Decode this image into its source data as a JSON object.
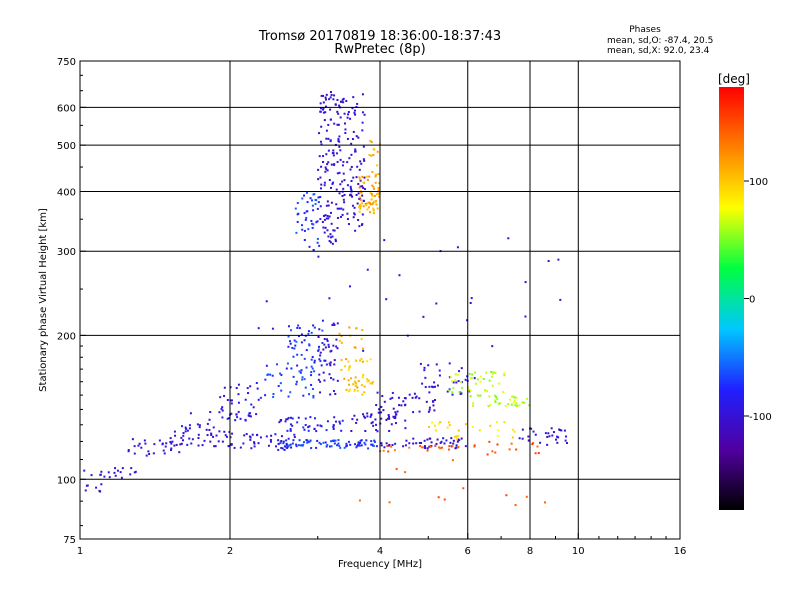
{
  "header": {
    "title": "Tromsø 20170819 18:36:00-18:37:43",
    "subtitle": "RwPretec (8p)",
    "info_title": "Phases",
    "info_o": "mean, sd,O: -87.4, 20.5",
    "info_x": "mean, sd,X:  92.0, 23.4"
  },
  "chart_data": {
    "type": "scatter",
    "xlabel": "Frequency [MHz]",
    "ylabel": "Stationary phase Virtual Height [km]",
    "xscale": "log",
    "yscale": "log",
    "xlim": [
      1,
      16
    ],
    "ylim": [
      75,
      750
    ],
    "xticks": [
      1,
      2,
      4,
      6,
      8,
      10,
      16
    ],
    "xtick_labels": [
      "1",
      "2",
      "4",
      "6",
      "8",
      "10",
      "16"
    ],
    "xgrid": [
      2,
      4,
      6,
      8,
      10
    ],
    "yticks": [
      75,
      100,
      200,
      300,
      400,
      500,
      600,
      750
    ],
    "ytick_labels": [
      "75",
      "100",
      "200",
      "300",
      "400",
      "500",
      "600",
      "750"
    ],
    "ygrid": [
      100,
      200,
      300,
      400,
      500,
      600
    ],
    "grid": true,
    "colorbar": {
      "label": "[deg]",
      "range": [
        -180,
        180
      ],
      "ticks": [
        100,
        0,
        -100
      ],
      "tick_labels": [
        "100",
        "0",
        "-100"
      ],
      "colors": [
        "#000000",
        "#5000a0",
        "#2020ff",
        "#00c8ff",
        "#00ff40",
        "#ffff00",
        "#ff8000",
        "#ff0000"
      ]
    },
    "clusters": [
      {
        "x": [
          1.0,
          1.12
        ],
        "y": [
          92,
          106
        ],
        "phase": -100,
        "n": 12
      },
      {
        "x": [
          1.1,
          1.3
        ],
        "y": [
          100,
          108
        ],
        "phase": -95,
        "n": 14
      },
      {
        "x": [
          1.25,
          1.6
        ],
        "y": [
          112,
          122
        ],
        "phase": -100,
        "n": 30
      },
      {
        "x": [
          1.5,
          2.0
        ],
        "y": [
          117,
          128
        ],
        "phase": -100,
        "n": 40
      },
      {
        "x": [
          1.6,
          2.2
        ],
        "y": [
          128,
          140
        ],
        "phase": -90,
        "n": 25
      },
      {
        "x": [
          1.9,
          2.3
        ],
        "y": [
          135,
          160
        ],
        "phase": -95,
        "n": 30
      },
      {
        "x": [
          2.0,
          2.7
        ],
        "y": [
          115,
          125
        ],
        "phase": -95,
        "n": 45
      },
      {
        "x": [
          2.3,
          3.0
        ],
        "y": [
          148,
          175
        ],
        "phase": -70,
        "n": 40
      },
      {
        "x": [
          2.6,
          3.1
        ],
        "y": [
          170,
          215
        ],
        "phase": -70,
        "n": 45
      },
      {
        "x": [
          3.0,
          3.3
        ],
        "y": [
          150,
          215
        ],
        "phase": -100,
        "n": 45
      },
      {
        "x": [
          2.5,
          4.0
        ],
        "y": [
          116,
          121
        ],
        "phase": -70,
        "n": 80
      },
      {
        "x": [
          2.5,
          3.4
        ],
        "y": [
          126,
          135
        ],
        "phase": -85,
        "n": 45
      },
      {
        "x": [
          3.5,
          4.5
        ],
        "y": [
          126,
          138
        ],
        "phase": -100,
        "n": 40
      },
      {
        "x": [
          3.4,
          3.9
        ],
        "y": [
          150,
          180
        ],
        "phase": 100,
        "n": 35
      },
      {
        "x": [
          3.3,
          3.7
        ],
        "y": [
          155,
          210
        ],
        "phase": 110,
        "n": 25
      },
      {
        "x": [
          3.9,
          5.2
        ],
        "y": [
          138,
          152
        ],
        "phase": -100,
        "n": 40
      },
      {
        "x": [
          4.0,
          6.0
        ],
        "y": [
          116,
          122
        ],
        "phase": -100,
        "n": 50
      },
      {
        "x": [
          4.0,
          6.0
        ],
        "y": [
          114,
          118
        ],
        "phase": 140,
        "n": 20
      },
      {
        "x": [
          4.8,
          6.2
        ],
        "y": [
          150,
          175
        ],
        "phase": -95,
        "n": 35
      },
      {
        "x": [
          5.5,
          7.2
        ],
        "y": [
          152,
          168
        ],
        "phase": 60,
        "n": 40
      },
      {
        "x": [
          6.0,
          8.0
        ],
        "y": [
          142,
          150
        ],
        "phase": 60,
        "n": 35
      },
      {
        "x": [
          5.0,
          7.5
        ],
        "y": [
          120,
          132
        ],
        "phase": 90,
        "n": 25
      },
      {
        "x": [
          7.5,
          9.5
        ],
        "y": [
          118,
          128
        ],
        "phase": -100,
        "n": 30
      },
      {
        "x": [
          6.0,
          8.5
        ],
        "y": [
          112,
          120
        ],
        "phase": 150,
        "n": 15
      },
      {
        "x": [
          2.7,
          3.05
        ],
        "y": [
          300,
          400
        ],
        "phase": -70,
        "n": 45
      },
      {
        "x": [
          3.0,
          3.3
        ],
        "y": [
          310,
          650
        ],
        "phase": -100,
        "n": 110
      },
      {
        "x": [
          3.3,
          3.75
        ],
        "y": [
          330,
          640
        ],
        "phase": -100,
        "n": 120
      },
      {
        "x": [
          3.6,
          4.0
        ],
        "y": [
          360,
          430
        ],
        "phase": 110,
        "n": 60
      },
      {
        "x": [
          3.8,
          4.0
        ],
        "y": [
          430,
          520
        ],
        "phase": 105,
        "n": 15
      },
      {
        "x": [
          2.2,
          9.5
        ],
        "y": [
          170,
          320
        ],
        "phase": -100,
        "n": 30
      },
      {
        "x": [
          3.5,
          9.0
        ],
        "y": [
          88,
          115
        ],
        "phase": 140,
        "n": 12
      }
    ]
  }
}
